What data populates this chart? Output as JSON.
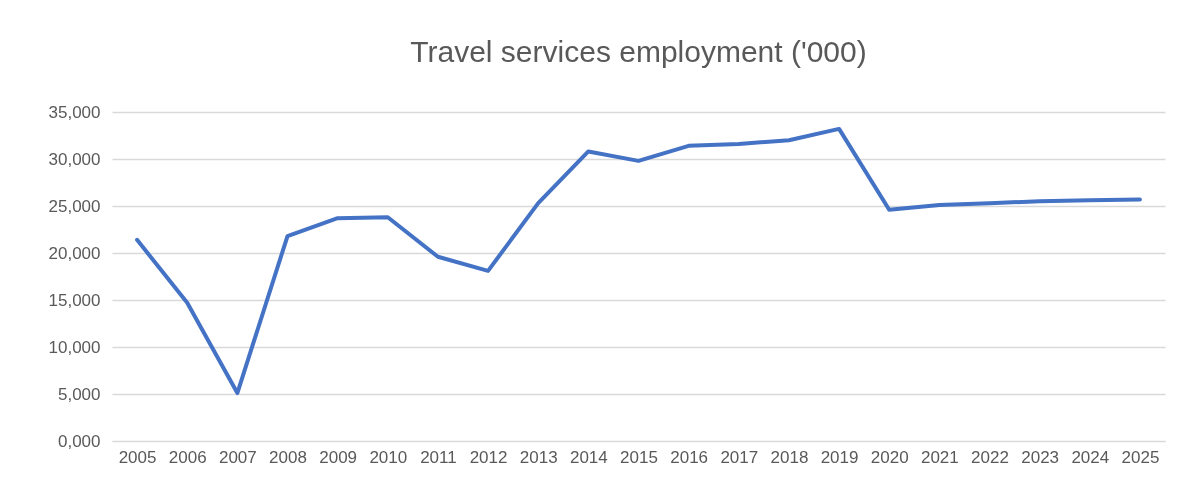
{
  "chart_data": {
    "type": "line",
    "title": "Travel services employment ('000)",
    "categories": [
      "2005",
      "2006",
      "2007",
      "2008",
      "2009",
      "2010",
      "2011",
      "2012",
      "2013",
      "2014",
      "2015",
      "2016",
      "2017",
      "2018",
      "2019",
      "2020",
      "2021",
      "2022",
      "2023",
      "2024",
      "2025"
    ],
    "series": [
      {
        "color": "#4472c4",
        "values": [
          21400,
          14700,
          5100,
          21800,
          23700,
          23800,
          19600,
          18100,
          25300,
          30800,
          29800,
          31400,
          31600,
          32000,
          33200,
          24600,
          25100,
          25300,
          25500,
          25600,
          25700
        ]
      }
    ],
    "ylim": [
      0,
      35000
    ],
    "yticks": [
      {
        "value": 0,
        "label": "0,000"
      },
      {
        "value": 5000,
        "label": "5,000"
      },
      {
        "value": 10000,
        "label": "10,000"
      },
      {
        "value": 15000,
        "label": "15,000"
      },
      {
        "value": 20000,
        "label": "20,000"
      },
      {
        "value": 25000,
        "label": "25,000"
      },
      {
        "value": 30000,
        "label": "30,000"
      },
      {
        "value": 35000,
        "label": "35,000"
      }
    ],
    "grid": "y",
    "legend": false,
    "marker": "none",
    "line_style": "solid"
  }
}
